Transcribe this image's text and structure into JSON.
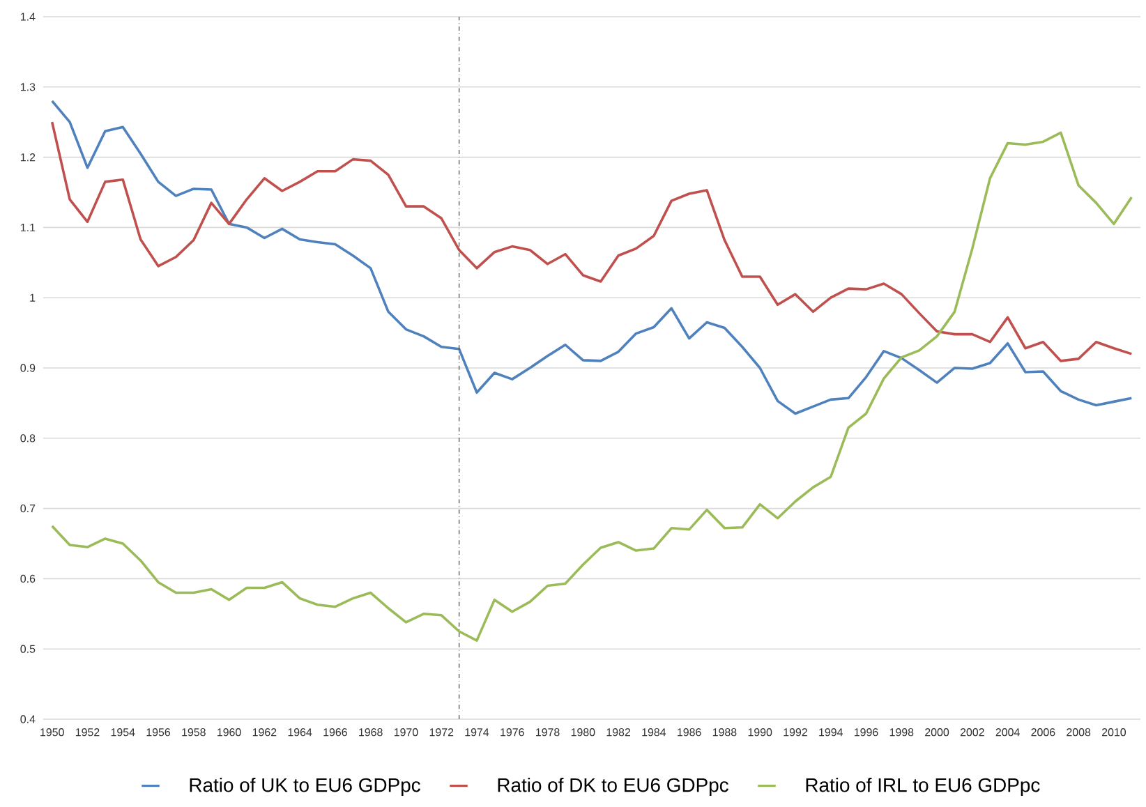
{
  "chart_data": {
    "type": "line",
    "x": [
      1950,
      1951,
      1952,
      1953,
      1954,
      1955,
      1956,
      1957,
      1958,
      1959,
      1960,
      1961,
      1962,
      1963,
      1964,
      1965,
      1966,
      1967,
      1968,
      1969,
      1970,
      1971,
      1972,
      1973,
      1974,
      1975,
      1976,
      1977,
      1978,
      1979,
      1980,
      1981,
      1982,
      1983,
      1984,
      1985,
      1986,
      1987,
      1988,
      1989,
      1990,
      1991,
      1992,
      1993,
      1994,
      1995,
      1996,
      1997,
      1998,
      1999,
      2000,
      2001,
      2002,
      2003,
      2004,
      2005,
      2006,
      2007,
      2008,
      2009,
      2010,
      2011
    ],
    "xlim": [
      1949.5,
      2011.5
    ],
    "xticks": [
      1950,
      1952,
      1954,
      1956,
      1958,
      1960,
      1962,
      1964,
      1966,
      1968,
      1970,
      1972,
      1974,
      1976,
      1978,
      1980,
      1982,
      1984,
      1986,
      1988,
      1990,
      1992,
      1994,
      1996,
      1998,
      2000,
      2002,
      2004,
      2006,
      2008,
      2010
    ],
    "ylim": [
      0.4,
      1.4
    ],
    "yticks": [
      0.4,
      0.5,
      0.6,
      0.7,
      0.8,
      0.9,
      1,
      1.1,
      1.2,
      1.3,
      1.4
    ],
    "grid": "y",
    "legend": "bottom",
    "ref_lines": [
      {
        "axis": "x",
        "value": 1973,
        "line_style": "dotted",
        "color": "#404040"
      }
    ],
    "series": [
      {
        "name": "Ratio of UK to EU6 GDPpc",
        "color": "#4f81bd",
        "values": [
          1.28,
          1.25,
          1.185,
          1.237,
          1.243,
          1.205,
          1.165,
          1.145,
          1.155,
          1.154,
          1.105,
          1.1,
          1.085,
          1.098,
          1.083,
          1.079,
          1.076,
          1.06,
          1.042,
          0.98,
          0.955,
          0.945,
          0.93,
          0.927,
          0.865,
          0.893,
          0.884,
          0.9,
          0.917,
          0.933,
          0.911,
          0.91,
          0.923,
          0.949,
          0.958,
          0.985,
          0.942,
          0.965,
          0.957,
          0.93,
          0.9,
          0.853,
          0.835,
          0.845,
          0.855,
          0.857,
          0.887,
          0.924,
          0.914,
          0.897,
          0.879,
          0.9,
          0.899,
          0.907,
          0.935,
          0.894,
          0.895,
          0.867,
          0.855,
          0.847,
          0.852,
          0.857
        ]
      },
      {
        "name": "Ratio of DK to EU6 GDPpc",
        "color": "#c0504d",
        "values": [
          1.25,
          1.14,
          1.108,
          1.165,
          1.168,
          1.083,
          1.045,
          1.058,
          1.082,
          1.135,
          1.105,
          1.14,
          1.17,
          1.152,
          1.165,
          1.18,
          1.18,
          1.197,
          1.195,
          1.175,
          1.13,
          1.13,
          1.113,
          1.068,
          1.042,
          1.065,
          1.073,
          1.068,
          1.048,
          1.062,
          1.032,
          1.023,
          1.06,
          1.07,
          1.088,
          1.138,
          1.148,
          1.153,
          1.082,
          1.03,
          1.03,
          0.99,
          1.005,
          0.98,
          1.0,
          1.013,
          1.012,
          1.02,
          1.005,
          0.978,
          0.952,
          0.948,
          0.948,
          0.937,
          0.972,
          0.928,
          0.937,
          0.91,
          0.913,
          0.937,
          0.928,
          0.92
        ]
      },
      {
        "name": "Ratio of IRL to EU6 GDPpc",
        "color": "#9bbb59",
        "values": [
          0.675,
          0.648,
          0.645,
          0.657,
          0.65,
          0.626,
          0.595,
          0.58,
          0.58,
          0.585,
          0.57,
          0.587,
          0.587,
          0.595,
          0.572,
          0.563,
          0.56,
          0.572,
          0.58,
          0.558,
          0.538,
          0.55,
          0.548,
          0.525,
          0.512,
          0.57,
          0.553,
          0.567,
          0.59,
          0.593,
          0.62,
          0.644,
          0.652,
          0.64,
          0.643,
          0.672,
          0.67,
          0.698,
          0.672,
          0.673,
          0.706,
          0.686,
          0.71,
          0.73,
          0.745,
          0.815,
          0.835,
          0.885,
          0.915,
          0.925,
          0.945,
          0.98,
          1.07,
          1.17,
          1.22,
          1.218,
          1.222,
          1.235,
          1.16,
          1.135,
          1.105,
          1.143
        ]
      }
    ]
  }
}
